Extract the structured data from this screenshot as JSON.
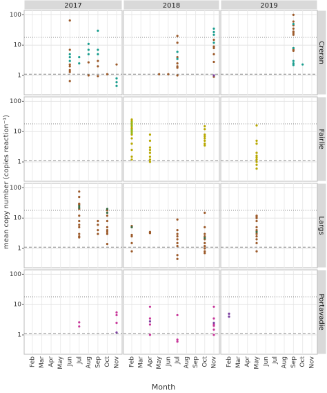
{
  "chart_data": {
    "type": "scatter",
    "xlabel": "Month",
    "ylabel": "mean copy number (copies reaction⁻¹)",
    "log_y": true,
    "grid": true,
    "columns": [
      "2017",
      "2018",
      "2019"
    ],
    "rows": [
      "Creran",
      "Fairlie",
      "Largs",
      "Portavadie"
    ],
    "x": [
      "Feb",
      "Mar",
      "Apr",
      "May",
      "Jun",
      "Jul",
      "Aug",
      "Sep",
      "Oct",
      "Nov"
    ],
    "ylim": [
      0.23,
      140
    ],
    "yticks": [
      1,
      10,
      100
    ],
    "hlines": [
      {
        "value": 1.1,
        "style": "dashed"
      },
      {
        "value": 18,
        "style": "dotted"
      }
    ],
    "panels": [
      [
        {
          "series": [
            {
              "color": "#1a9e8f",
              "x": [
                "Jun",
                "Jun",
                "Jun",
                "Jul",
                "Jul",
                "Aug",
                "Aug",
                "Aug",
                "Sep",
                "Sep",
                "Sep",
                "Nov",
                "Nov",
                "Nov"
              ],
              "values": [
                3,
                4,
                5,
                2.5,
                4,
                5,
                11,
                7,
                30,
                7,
                5,
                0.8,
                0.6,
                0.45
              ]
            },
            {
              "color": "#9c5a2a",
              "x": [
                "Jun",
                "Jun",
                "Jun",
                "Jun",
                "Jun",
                "Jun",
                "Jun",
                "Aug",
                "Aug",
                "Sep",
                "Sep",
                "Sep",
                "Oct",
                "Nov"
              ],
              "values": [
                65,
                2,
                1.5,
                1.3,
                0.65,
                7,
                2.3,
                1,
                2.7,
                3,
                2,
                0.95,
                1.1,
                2.3
              ]
            }
          ]
        },
        {
          "series": [
            {
              "color": "#9c5a2a",
              "x": [
                "May",
                "Jun",
                "Jul",
                "Jul",
                "Jul",
                "Jul",
                "Jul",
                "Jul",
                "Jul",
                "Nov",
                "Nov",
                "Nov",
                "Nov",
                "Nov",
                "Nov"
              ],
              "values": [
                1.1,
                1.1,
                20,
                12,
                4,
                2.5,
                2,
                1.8,
                1,
                15,
                9,
                8,
                5,
                2.8,
                0.9
              ]
            },
            {
              "color": "#1a9e8f",
              "x": [
                "Jul",
                "Jul",
                "Nov",
                "Nov",
                "Nov",
                "Nov"
              ],
              "values": [
                6,
                3.5,
                35,
                27,
                22,
                12
              ]
            },
            {
              "color": "#7b3fa0",
              "x": [
                "Nov"
              ],
              "values": [
                1
              ]
            }
          ]
        },
        {
          "series": [
            {
              "color": "#9c5a2a",
              "x": [
                "Sep",
                "Sep",
                "Sep",
                "Sep",
                "Sep",
                "Sep",
                "Sep",
                "Sep",
                "Sep",
                "Sep"
              ],
              "values": [
                100,
                60,
                45,
                35,
                28,
                25,
                22,
                7,
                6.5,
                8
              ]
            },
            {
              "color": "#1a9e8f",
              "x": [
                "Sep",
                "Sep",
                "Sep",
                "Sep",
                "Sep",
                "Oct"
              ],
              "values": [
                50,
                8,
                2.5,
                2.2,
                3,
                2.3
              ]
            }
          ]
        }
      ],
      [
        {
          "series": []
        },
        {
          "series": [
            {
              "color": "#b8a800",
              "x": [
                "Feb",
                "Feb",
                "Feb",
                "Feb",
                "Feb",
                "Feb",
                "Feb",
                "Feb",
                "Feb",
                "Feb",
                "Feb",
                "Feb",
                "Feb",
                "Apr",
                "Apr",
                "Apr",
                "Apr",
                "Apr",
                "Apr",
                "Apr",
                "Apr",
                "Oct",
                "Oct",
                "Oct",
                "Oct",
                "Oct",
                "Oct",
                "Oct",
                "Oct"
              ],
              "values": [
                25,
                22,
                18,
                15,
                13,
                12,
                10,
                8,
                6,
                4,
                2.5,
                1.5,
                1.2,
                8,
                5,
                3,
                2.5,
                2,
                1.5,
                1.2,
                1,
                15,
                12,
                8,
                7,
                6,
                5,
                4,
                3.5
              ]
            },
            {
              "color": "#8fbc1e",
              "x": [
                "Feb",
                "Feb",
                "Feb",
                "Feb"
              ],
              "values": [
                20,
                16,
                11,
                9
              ]
            }
          ]
        },
        {
          "series": [
            {
              "color": "#b8a800",
              "x": [
                "May",
                "May",
                "May",
                "May",
                "May",
                "May",
                "May",
                "May",
                "May",
                "May"
              ],
              "values": [
                16,
                5,
                4,
                2,
                1.6,
                1.4,
                1.2,
                1,
                0.8,
                0.6
              ]
            }
          ]
        }
      ],
      [
        {
          "series": [
            {
              "color": "#9c5a2a",
              "x": [
                "Jul",
                "Jul",
                "Jul",
                "Jul",
                "Jul",
                "Jul",
                "Jul",
                "Jul",
                "Jul",
                "Jul",
                "Jul",
                "Jul",
                "Sep",
                "Sep",
                "Sep",
                "Sep",
                "Oct",
                "Oct",
                "Oct",
                "Oct",
                "Oct",
                "Oct",
                "Oct",
                "Oct"
              ],
              "values": [
                75,
                50,
                30,
                28,
                20,
                12,
                8,
                6,
                5,
                3,
                2.5,
                2.3,
                8,
                6,
                4,
                3,
                18,
                12,
                8,
                5,
                4,
                3.5,
                3,
                1.4
              ]
            },
            {
              "color": "#3c6e46",
              "x": [
                "Jul",
                "Jul",
                "Oct",
                "Oct"
              ],
              "values": [
                22,
                25,
                15,
                20
              ]
            }
          ]
        },
        {
          "series": [
            {
              "color": "#9c5a2a",
              "x": [
                "Feb",
                "Feb",
                "Feb",
                "Feb",
                "Feb",
                "Feb",
                "Apr",
                "Apr",
                "Apr",
                "Jul",
                "Jul",
                "Jul",
                "Jul",
                "Jul",
                "Jul",
                "Jul",
                "Jul",
                "Jul",
                "Oct",
                "Oct",
                "Oct",
                "Oct",
                "Oct",
                "Oct",
                "Oct",
                "Oct",
                "Oct",
                "Oct"
              ],
              "values": [
                5.5,
                5,
                2.8,
                2.5,
                1.5,
                0.8,
                3.5,
                3.2,
                3.3,
                9,
                4,
                3,
                2.5,
                2,
                1.5,
                1.2,
                0.6,
                0.45,
                15,
                5,
                3,
                2.5,
                2,
                1.5,
                1.2,
                1,
                0.8,
                0.7
              ]
            },
            {
              "color": "#3c6e46",
              "x": [
                "Feb",
                "Oct"
              ],
              "values": [
                5,
                2.2
              ]
            }
          ]
        },
        {
          "series": [
            {
              "color": "#9c5a2a",
              "x": [
                "May",
                "May",
                "May",
                "May",
                "May",
                "May",
                "May",
                "May",
                "May",
                "May",
                "May",
                "May"
              ],
              "values": [
                12,
                11,
                10,
                8,
                5,
                4,
                3.5,
                3,
                2.5,
                2,
                1.5,
                0.8
              ]
            },
            {
              "color": "#3c6e46",
              "x": [
                "May"
              ],
              "values": [
                3.5
              ]
            }
          ]
        }
      ],
      [
        {
          "series": [
            {
              "color": "#c8379a",
              "x": [
                "Jul",
                "Jul",
                "Nov",
                "Nov",
                "Nov"
              ],
              "values": [
                2.6,
                1.9,
                5.5,
                4.5,
                2.5
              ]
            },
            {
              "color": "#7b3fa0",
              "x": [
                "Nov"
              ],
              "values": [
                1.2
              ]
            }
          ]
        },
        {
          "series": [
            {
              "color": "#c8379a",
              "x": [
                "Apr",
                "Apr",
                "Apr",
                "Apr",
                "Jul",
                "Jul",
                "Jul",
                "Nov",
                "Nov",
                "Nov",
                "Nov",
                "Nov",
                "Nov"
              ],
              "values": [
                8.5,
                3.5,
                2.2,
                1,
                4.5,
                0.7,
                0.6,
                8.5,
                3.5,
                2.2,
                2,
                1.5,
                1
              ]
            },
            {
              "color": "#7b3fa0",
              "x": [
                "Apr",
                "Nov"
              ],
              "values": [
                2.8,
                2.5
              ]
            }
          ]
        },
        {
          "series": [
            {
              "color": "#7b3fa0",
              "x": [
                "Feb",
                "Feb"
              ],
              "values": [
                5,
                4
              ]
            }
          ]
        }
      ]
    ]
  }
}
